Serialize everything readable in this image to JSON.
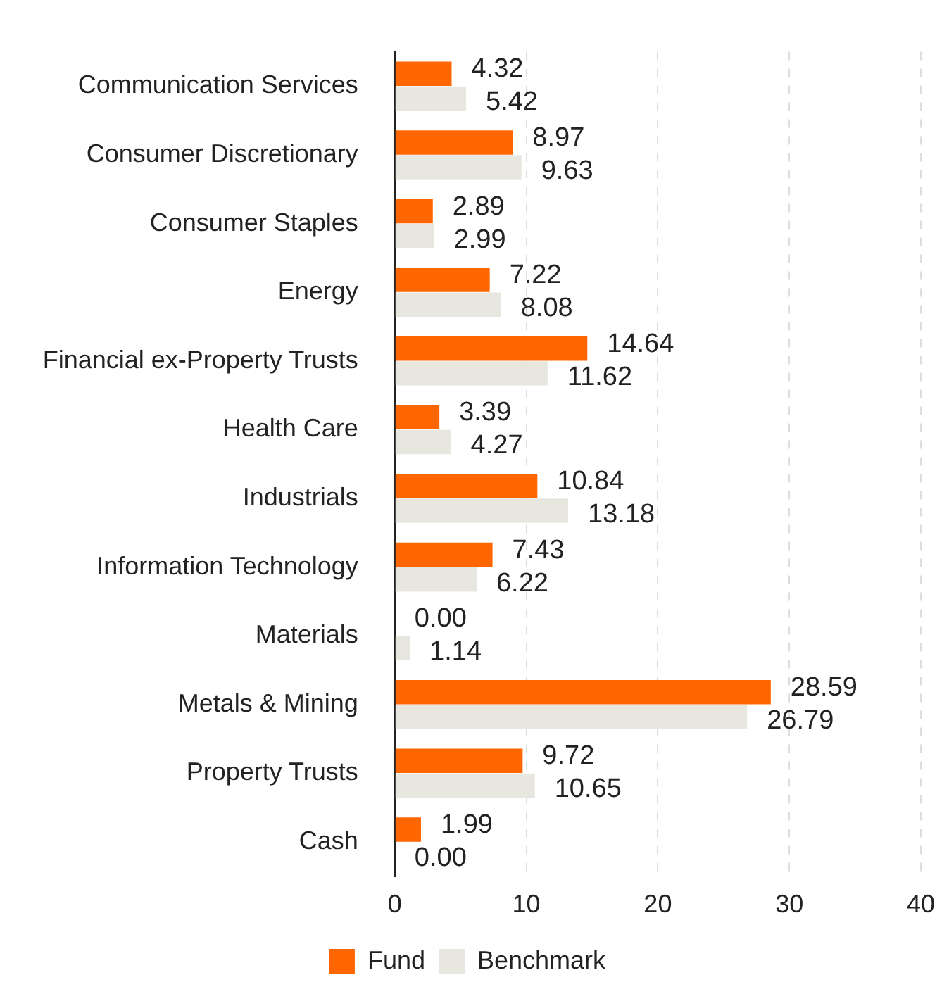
{
  "chart_data": {
    "type": "bar",
    "orientation": "horizontal",
    "categories": [
      "Communication Services",
      "Consumer Discretionary",
      "Consumer Staples",
      "Energy",
      "Financial ex-Property Trusts",
      "Health Care",
      "Industrials",
      "Information Technology",
      "Materials",
      "Metals & Mining",
      "Property Trusts",
      "Cash"
    ],
    "series": [
      {
        "name": "Fund",
        "color": "#ff6600",
        "values": [
          4.32,
          8.97,
          2.89,
          7.22,
          14.64,
          3.39,
          10.84,
          7.43,
          0.0,
          28.59,
          9.72,
          1.99
        ],
        "value_labels": [
          "4.32",
          "8.97",
          "2.89",
          "7.22",
          "14.64",
          "3.39",
          "10.84",
          "7.43",
          "0.00",
          "28.59",
          "9.72",
          "1.99"
        ]
      },
      {
        "name": "Benchmark",
        "color": "#e8e7df",
        "values": [
          5.42,
          9.63,
          2.99,
          8.08,
          11.62,
          4.27,
          13.18,
          6.22,
          1.14,
          26.79,
          10.65,
          0.0
        ],
        "value_labels": [
          "5.42",
          "9.63",
          "2.99",
          "8.08",
          "11.62",
          "4.27",
          "13.18",
          "6.22",
          "1.14",
          "26.79",
          "10.65",
          "0.00"
        ]
      }
    ],
    "xlim": [
      0,
      40
    ],
    "xticks": [
      0,
      10,
      20,
      30,
      40
    ],
    "grid": "x",
    "legend": "bottom"
  }
}
